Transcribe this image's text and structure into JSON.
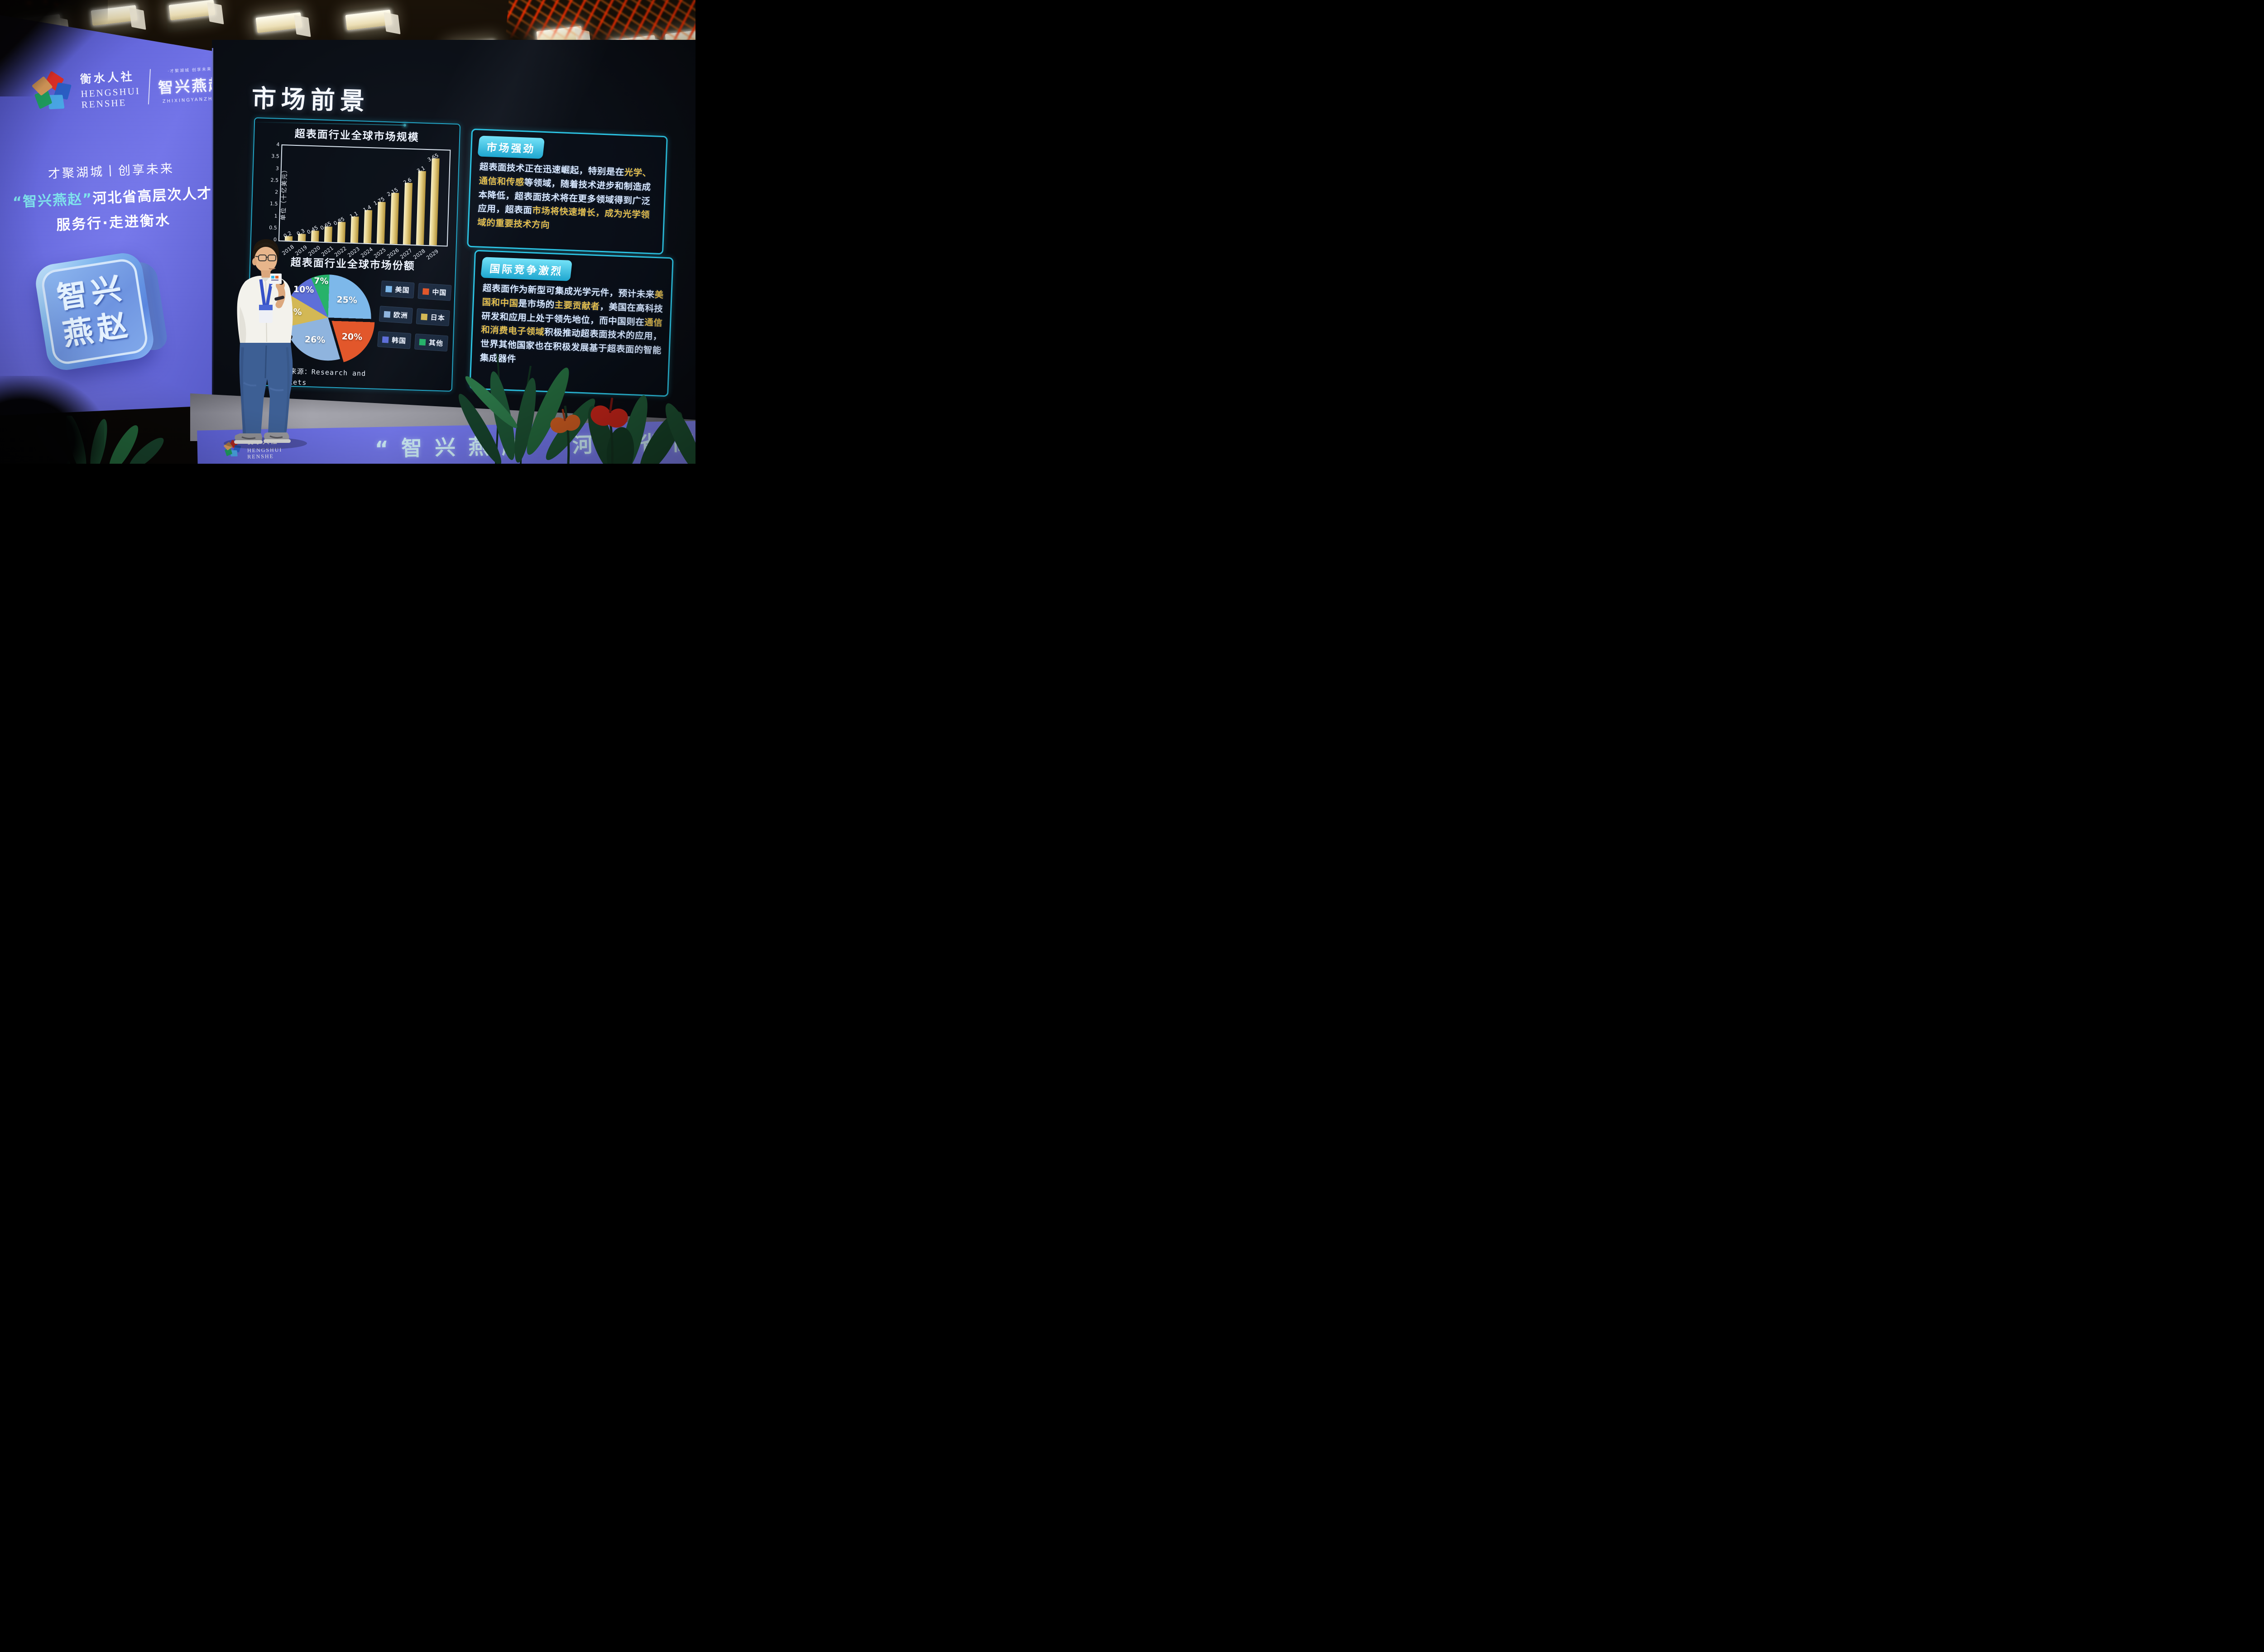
{
  "left_screen": {
    "logo": {
      "cn_name": "衡水人社",
      "en_name_line1": "HENGSHUI",
      "en_name_line2": "RENSHE",
      "brand_small_tagline": "·才聚湖城 创享未来·",
      "brand_cn": "智兴燕赵",
      "brand_en": "ZHIXINGYANZHAO"
    },
    "tagline_line1": "才聚湖城丨创享未来",
    "tagline_line2_highlight": "“智兴燕赵”",
    "tagline_line2_rest": "河北省高层次人才",
    "tagline_line3": "服务行·走进衡水",
    "cube_line1": "智兴",
    "cube_line2": "燕赵"
  },
  "slide": {
    "title": "市场前景",
    "source_line1": "数据来源：Research and",
    "source_line2": "Markets",
    "panels": [
      {
        "header": "市场强劲",
        "segments": [
          {
            "text": "超表面技术正在迅速崛起，特别是在",
            "highlight": false
          },
          {
            "text": "光学、通信和传感",
            "highlight": true
          },
          {
            "text": "等领域，随着技术进步和制造成本降低，超表面技术将在更多领域得到广泛应用，超表面",
            "highlight": false
          },
          {
            "text": "市场将快速增长，成为光学领域的重要技术方向",
            "highlight": true
          }
        ]
      },
      {
        "header": "国际竞争激烈",
        "segments": [
          {
            "text": "超表面作为新型可集成光学元件，预计未来",
            "highlight": false
          },
          {
            "text": "美国和中国",
            "highlight": true
          },
          {
            "text": "是市场的",
            "highlight": false
          },
          {
            "text": "主要贡献者",
            "highlight": true
          },
          {
            "text": "，美国在高科技研发和应用上处于领先地位，而中国则在",
            "highlight": false
          },
          {
            "text": "通信和消费电子领域",
            "highlight": true
          },
          {
            "text": "积极推动超表面技术的应用，世界其他国家也在积极发展基于超表面的智能集成器件",
            "highlight": false
          }
        ]
      }
    ]
  },
  "chart_data": [
    {
      "type": "bar",
      "title": "超表面行业全球市场规模",
      "categories": [
        "2018",
        "2019",
        "2020",
        "2021",
        "2022",
        "2023",
        "2024",
        "2025",
        "2026",
        "2027",
        "2028",
        "2029"
      ],
      "values": [
        0.2,
        0.3,
        0.45,
        0.65,
        0.85,
        1.1,
        1.4,
        1.75,
        2.15,
        2.6,
        3.1,
        3.65
      ],
      "xlabel": "",
      "ylabel": "单位（十亿美元）",
      "ylim": [
        0,
        4
      ],
      "yticks": [
        0,
        0.5,
        1,
        1.5,
        2,
        2.5,
        3,
        3.5,
        4
      ],
      "grid": false,
      "bar_color": "#d9c06a"
    },
    {
      "type": "pie",
      "title": "超表面行业全球市场份额",
      "labels": [
        "美国",
        "中国",
        "欧洲",
        "日本",
        "韩国",
        "其他"
      ],
      "values": [
        25,
        20,
        26,
        12,
        10,
        7
      ],
      "colors": [
        "#7db8ea",
        "#e2572b",
        "#8fb4de",
        "#d3b855",
        "#5e6fd8",
        "#27b26a"
      ],
      "exploded_label": "中国",
      "legend_position": "right",
      "source": "数据来源：Research and Markets"
    }
  ],
  "bottom_banner": {
    "logo_cn": "衡水人社",
    "logo_en_line1": "HENGSHUI",
    "logo_en_line2": "RENSHE",
    "slogan_left": "“智兴燕赵",
    "slogan_right": "河北省高"
  },
  "colors": {
    "accent_cyan": "#2cc2e2",
    "highlight_gold": "#e3be4d",
    "bar_gold": "#d9c06a",
    "screen_blue": "#6b6fe8"
  }
}
